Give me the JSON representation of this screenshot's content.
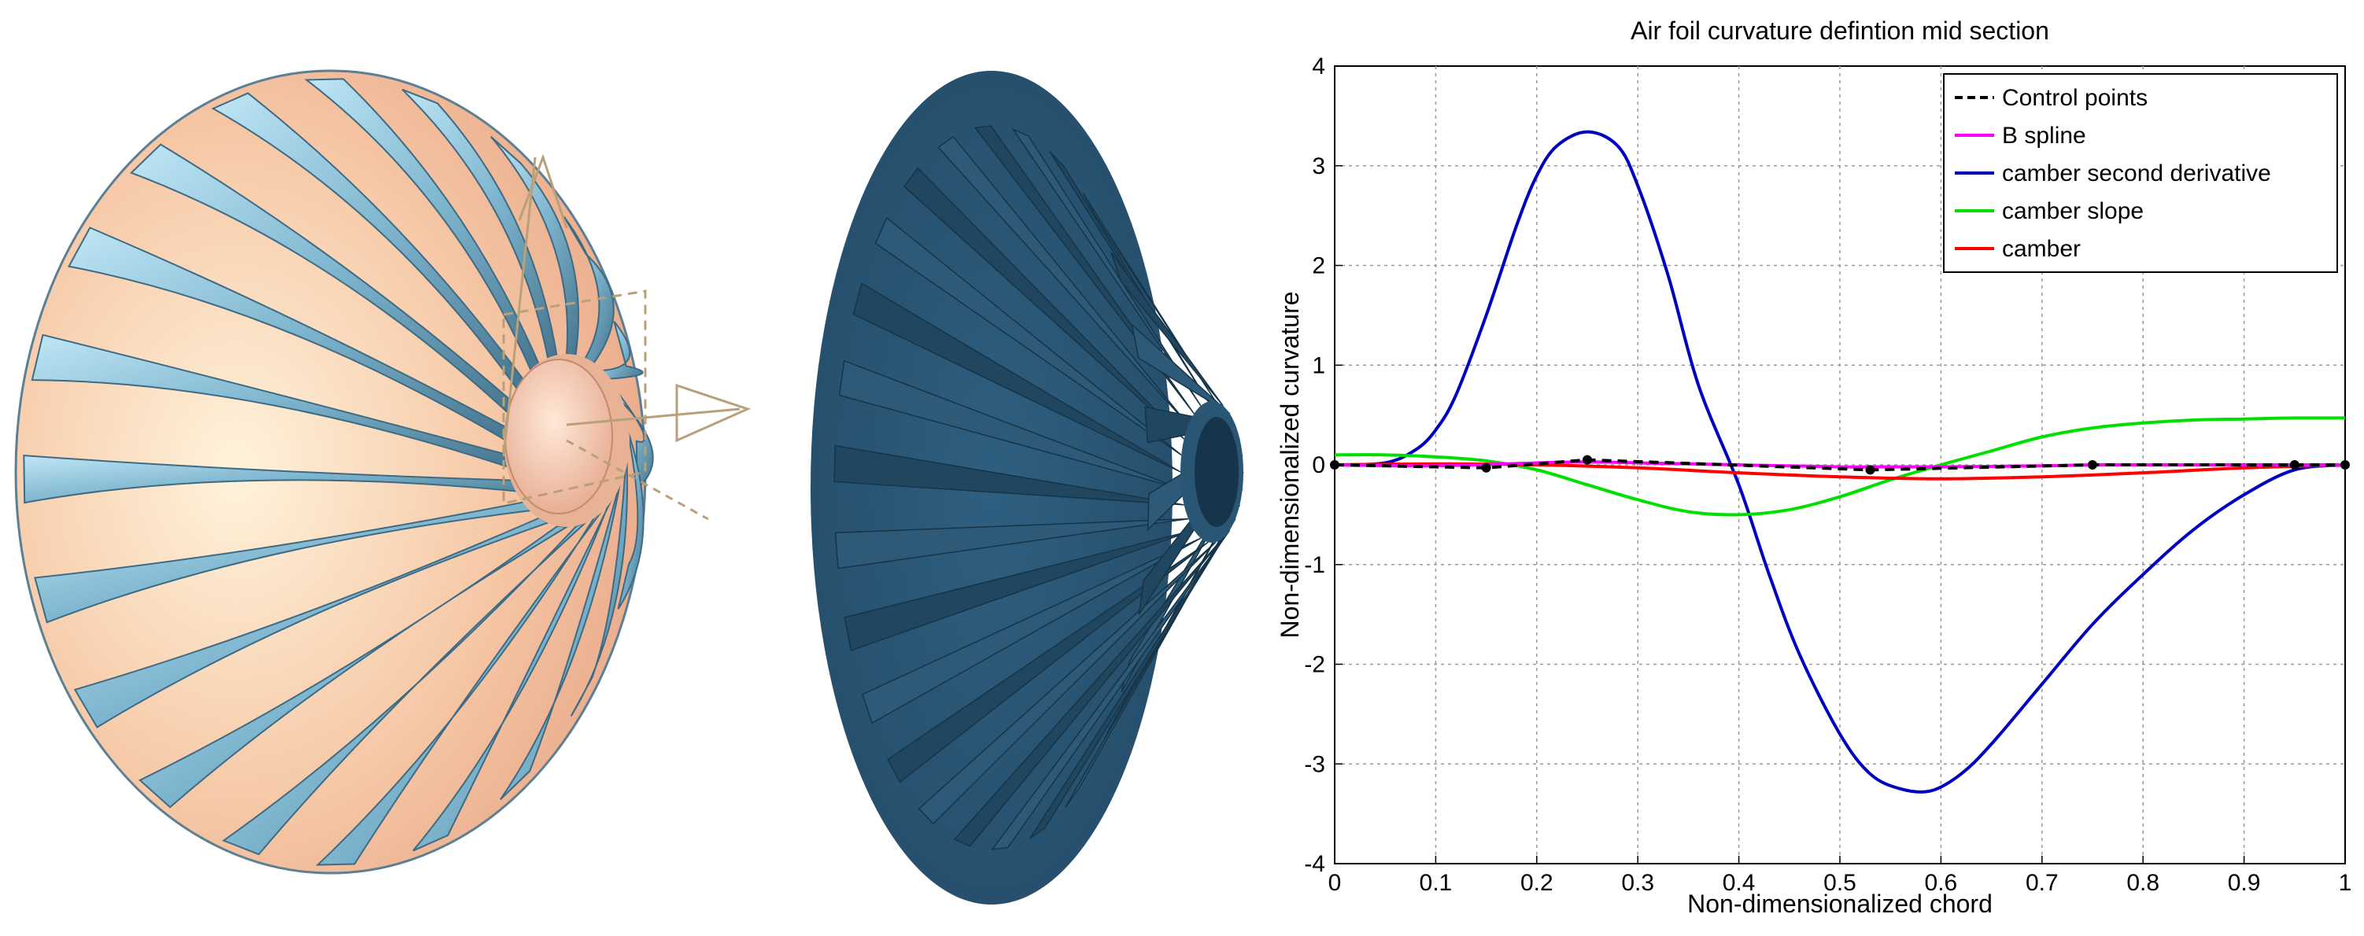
{
  "chart_data": {
    "type": "line",
    "title": "Air foil curvature defintion mid section",
    "xlabel": "Non-dimensionalized chord",
    "ylabel": "Non-dimensionalized curvature",
    "xlim": [
      0,
      1
    ],
    "ylim": [
      -4,
      4
    ],
    "xticks": [
      0,
      0.1,
      0.2,
      0.3,
      0.4,
      0.5,
      0.6,
      0.7,
      0.8,
      0.9,
      1
    ],
    "xtick_labels": [
      "0",
      "0.1",
      "0.2",
      "0.3",
      "0.4",
      "0.5",
      "0.6",
      "0.7",
      "0.8",
      "0.9",
      "1"
    ],
    "yticks": [
      -4,
      -3,
      -2,
      -1,
      0,
      1,
      2,
      3,
      4
    ],
    "ytick_labels": [
      "-4",
      "-3",
      "-2",
      "-1",
      "0",
      "1",
      "2",
      "3",
      "4"
    ],
    "grid": true,
    "legend_position": "top-right",
    "series": [
      {
        "name": "Control points",
        "color": "#000000",
        "style": "dashed",
        "markers": true,
        "x": [
          0,
          0.15,
          0.25,
          0.53,
          0.75,
          0.95,
          1.0
        ],
        "y": [
          0,
          -0.03,
          0.05,
          -0.05,
          0.0,
          0.0,
          0.0
        ]
      },
      {
        "name": "B spline",
        "color": "#ff00ff",
        "style": "solid",
        "x": [
          0,
          0.1,
          0.2,
          0.25,
          0.3,
          0.4,
          0.5,
          0.53,
          0.6,
          0.7,
          0.75,
          0.8,
          0.9,
          0.95,
          1.0
        ],
        "y": [
          0,
          -0.01,
          0.02,
          0.03,
          0.02,
          0.0,
          -0.02,
          -0.02,
          -0.02,
          -0.01,
          0.0,
          0.0,
          0.0,
          0.0,
          0.0
        ]
      },
      {
        "name": "camber second derivative",
        "color": "#0000c0",
        "style": "solid",
        "x": [
          0,
          0.05,
          0.08,
          0.1,
          0.12,
          0.15,
          0.18,
          0.2,
          0.22,
          0.25,
          0.28,
          0.3,
          0.33,
          0.36,
          0.4,
          0.43,
          0.46,
          0.5,
          0.53,
          0.56,
          0.59,
          0.62,
          0.65,
          0.7,
          0.75,
          0.8,
          0.85,
          0.9,
          0.95,
          1.0
        ],
        "y": [
          0,
          0.02,
          0.15,
          0.35,
          0.7,
          1.5,
          2.4,
          2.9,
          3.2,
          3.34,
          3.2,
          2.8,
          1.9,
          0.8,
          -0.2,
          -1.1,
          -1.9,
          -2.7,
          -3.1,
          -3.25,
          -3.27,
          -3.1,
          -2.8,
          -2.2,
          -1.6,
          -1.1,
          -0.65,
          -0.3,
          -0.05,
          0
        ]
      },
      {
        "name": "camber slope",
        "color": "#00e000",
        "style": "solid",
        "x": [
          0,
          0.05,
          0.1,
          0.15,
          0.2,
          0.25,
          0.3,
          0.35,
          0.4,
          0.45,
          0.5,
          0.55,
          0.6,
          0.65,
          0.7,
          0.75,
          0.8,
          0.85,
          0.9,
          0.95,
          1.0
        ],
        "y": [
          0.1,
          0.1,
          0.08,
          0.04,
          -0.05,
          -0.2,
          -0.35,
          -0.47,
          -0.5,
          -0.45,
          -0.32,
          -0.15,
          0.0,
          0.14,
          0.28,
          0.37,
          0.42,
          0.45,
          0.46,
          0.47,
          0.47
        ]
      },
      {
        "name": "camber",
        "color": "#ff0000",
        "style": "solid",
        "x": [
          0,
          0.1,
          0.2,
          0.3,
          0.4,
          0.5,
          0.6,
          0.7,
          0.8,
          0.9,
          1.0
        ],
        "y": [
          0,
          0.01,
          0.0,
          -0.03,
          -0.08,
          -0.12,
          -0.14,
          -0.12,
          -0.08,
          -0.03,
          0
        ]
      }
    ]
  }
}
